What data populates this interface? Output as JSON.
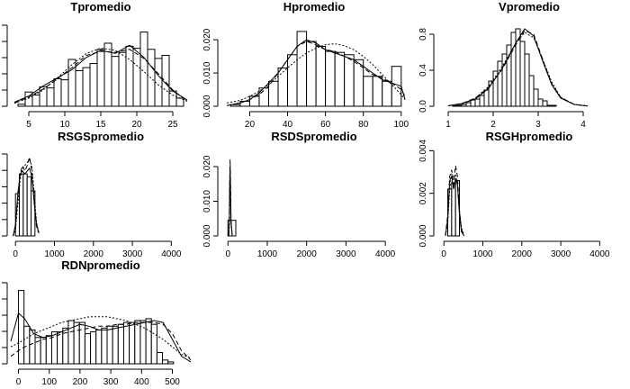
{
  "chart_data": [
    {
      "type": "histogram",
      "title": "Tpromedio",
      "x_ticks": [
        5,
        10,
        15,
        20,
        25
      ],
      "y_ticks": [],
      "xlim": [
        2.5,
        27.5
      ],
      "ylim": [
        0,
        0.085
      ],
      "bins": {
        "start": 3.5,
        "width": 1,
        "heights": [
          0.002,
          0.014,
          0.011,
          0.019,
          0.018,
          0.027,
          0.026,
          0.046,
          0.035,
          0.038,
          0.042,
          0.056,
          0.062,
          0.049,
          0.053,
          0.059,
          0.057,
          0.073,
          0.056,
          0.047,
          0.05,
          0.015,
          0.008
        ]
      },
      "series": [
        {
          "style": "solid",
          "x": [
            3,
            5,
            7,
            9,
            11,
            13,
            15,
            17,
            19,
            21,
            23,
            25,
            27
          ],
          "y": [
            0.004,
            0.01,
            0.02,
            0.028,
            0.036,
            0.048,
            0.055,
            0.052,
            0.06,
            0.048,
            0.03,
            0.015,
            0.006
          ]
        },
        {
          "style": "dashed",
          "x": [
            3,
            5,
            7,
            9,
            11,
            13,
            15,
            17,
            19,
            21,
            23,
            25,
            27
          ],
          "y": [
            0.003,
            0.009,
            0.017,
            0.027,
            0.038,
            0.05,
            0.054,
            0.053,
            0.056,
            0.047,
            0.032,
            0.016,
            0.005
          ]
        },
        {
          "style": "dotted",
          "x": [
            3,
            5,
            7,
            9,
            11,
            13,
            15,
            17,
            19,
            21,
            23,
            25,
            27
          ],
          "y": [
            0.003,
            0.008,
            0.016,
            0.028,
            0.041,
            0.052,
            0.057,
            0.055,
            0.046,
            0.034,
            0.021,
            0.011,
            0.005
          ]
        }
      ]
    },
    {
      "type": "histogram",
      "title": "Hpromedio",
      "x_ticks": [
        20,
        40,
        60,
        80,
        100
      ],
      "y_ticks": [
        0.0,
        0.01,
        0.02
      ],
      "y_tick_labels": [
        "0.000",
        "0.010",
        "0.020"
      ],
      "xlim": [
        6,
        102
      ],
      "ylim": [
        0,
        0.026
      ],
      "bins": {
        "start": 10,
        "width": 5,
        "heights": [
          0.0005,
          0.0015,
          0.003,
          0.0055,
          0.0075,
          0.0115,
          0.0155,
          0.0225,
          0.0195,
          0.018,
          0.0165,
          0.0162,
          0.0155,
          0.014,
          0.009,
          0.009,
          0.0075,
          0.012
        ]
      },
      "series": [
        {
          "style": "solid",
          "x": [
            8,
            15,
            20,
            25,
            30,
            35,
            40,
            45,
            50,
            55,
            60,
            65,
            70,
            75,
            80,
            85,
            90,
            95,
            100,
            102
          ],
          "y": [
            0.0002,
            0.001,
            0.002,
            0.004,
            0.007,
            0.01,
            0.014,
            0.018,
            0.02,
            0.019,
            0.017,
            0.016,
            0.015,
            0.014,
            0.012,
            0.01,
            0.008,
            0.007,
            0.006,
            0.002
          ]
        },
        {
          "style": "dashed",
          "x": [
            8,
            15,
            20,
            25,
            30,
            35,
            40,
            45,
            50,
            55,
            60,
            65,
            70,
            75,
            80,
            85,
            90,
            95,
            100,
            102
          ],
          "y": [
            0.0002,
            0.001,
            0.002,
            0.0035,
            0.006,
            0.01,
            0.014,
            0.018,
            0.0195,
            0.0185,
            0.017,
            0.0165,
            0.015,
            0.0135,
            0.0115,
            0.0095,
            0.0085,
            0.007,
            0.005,
            0.003
          ]
        },
        {
          "style": "dotted",
          "x": [
            8,
            15,
            20,
            25,
            30,
            35,
            40,
            45,
            50,
            55,
            60,
            65,
            70,
            75,
            80,
            85,
            90,
            95,
            100,
            102
          ],
          "y": [
            0.001,
            0.0018,
            0.003,
            0.0045,
            0.0065,
            0.009,
            0.0115,
            0.014,
            0.016,
            0.0175,
            0.0185,
            0.0188,
            0.0182,
            0.017,
            0.015,
            0.0125,
            0.0095,
            0.0065,
            0.0035,
            0.002
          ]
        }
      ]
    },
    {
      "type": "histogram",
      "title": "Vpromedio",
      "x_ticks": [
        1,
        2,
        3,
        4
      ],
      "y_ticks": [
        0.0,
        0.4,
        0.8
      ],
      "y_tick_labels": [
        "0.0",
        "0.4",
        "0.8"
      ],
      "xlim": [
        0.8,
        4.8
      ],
      "ylim": [
        0,
        0.96
      ],
      "bins": {
        "start": 1.1,
        "width": 0.1,
        "heights": [
          0.005,
          0.01,
          0.02,
          0.04,
          0.07,
          0.08,
          0.12,
          0.18,
          0.28,
          0.39,
          0.5,
          0.58,
          0.68,
          0.82,
          0.86,
          0.72,
          0.58,
          0.34,
          0.19,
          0.08,
          0.06,
          0.01,
          0.01
        ]
      },
      "series": [
        {
          "style": "solid",
          "x": [
            1.0,
            1.3,
            1.6,
            1.9,
            2.2,
            2.5,
            2.7,
            2.9,
            3.1,
            3.3,
            3.5,
            3.8,
            4.1
          ],
          "y": [
            0.005,
            0.03,
            0.08,
            0.2,
            0.42,
            0.7,
            0.86,
            0.78,
            0.5,
            0.24,
            0.09,
            0.02,
            0.003
          ]
        },
        {
          "style": "dashed",
          "x": [
            1.0,
            1.3,
            1.6,
            1.9,
            2.2,
            2.5,
            2.7,
            2.9,
            3.1,
            3.3,
            3.5,
            3.8,
            4.1
          ],
          "y": [
            0.005,
            0.03,
            0.09,
            0.21,
            0.41,
            0.68,
            0.84,
            0.8,
            0.52,
            0.25,
            0.1,
            0.02,
            0.003
          ]
        },
        {
          "style": "dotted",
          "x": [
            1.0,
            1.3,
            1.6,
            1.9,
            2.2,
            2.5,
            2.7,
            2.9,
            3.1,
            3.3,
            3.5,
            3.8,
            4.1
          ],
          "y": [
            0.004,
            0.025,
            0.09,
            0.22,
            0.44,
            0.7,
            0.82,
            0.76,
            0.52,
            0.27,
            0.1,
            0.02,
            0.003
          ]
        }
      ]
    },
    {
      "type": "histogram",
      "title": "RSGSpromedio",
      "x_ticks": [
        0,
        1000,
        2000,
        3000,
        4000
      ],
      "y_ticks": [],
      "xlim": [
        -120,
        4500
      ],
      "ylim": [
        0,
        0.0031
      ],
      "bins": {
        "start": 0,
        "width": 100,
        "heights": [
          0.0015,
          0.0022,
          0.0022,
          0.0021,
          0.0016
        ]
      },
      "series": [
        {
          "style": "solid",
          "x": [
            -60,
            0,
            60,
            120,
            180,
            240,
            300,
            360,
            420,
            480,
            540,
            600
          ],
          "y": [
            0,
            0.0004,
            0.0015,
            0.0022,
            0.0023,
            0.0022,
            0.0023,
            0.0024,
            0.0021,
            0.0012,
            0.0004,
            0.0001
          ]
        },
        {
          "style": "dashed",
          "x": [
            -60,
            0,
            60,
            120,
            180,
            240,
            300,
            360,
            420,
            480,
            540,
            600
          ],
          "y": [
            0,
            0.0003,
            0.0014,
            0.0022,
            0.0025,
            0.0023,
            0.0025,
            0.0028,
            0.0023,
            0.0012,
            0.0003,
            0.0001
          ]
        },
        {
          "style": "dotted",
          "x": [
            -60,
            0,
            60,
            120,
            180,
            240,
            300,
            360,
            420,
            480,
            540,
            600
          ],
          "y": [
            0,
            0.0002,
            0.0011,
            0.002,
            0.0024,
            0.0025,
            0.0026,
            0.0027,
            0.0025,
            0.0015,
            0.0005,
            0.0001
          ]
        }
      ]
    },
    {
      "type": "histogram",
      "title": "RSDSpromedio",
      "x_ticks": [
        0,
        1000,
        2000,
        3000,
        4000
      ],
      "y_ticks": [
        0.0,
        0.01,
        0.02
      ],
      "y_tick_labels": [
        "0.000",
        "0.010",
        "0.020"
      ],
      "xlim": [
        -120,
        4500
      ],
      "ylim": [
        0,
        0.0252
      ],
      "bins": {
        "start": 0,
        "width": 200,
        "heights": [
          0.0045
        ]
      },
      "series": [
        {
          "style": "solid",
          "x": [
            20,
            35,
            45,
            55,
            65,
            80,
            110
          ],
          "y": [
            0,
            0.004,
            0.014,
            0.02,
            0.014,
            0.004,
            0
          ]
        },
        {
          "style": "dashed",
          "x": [
            20,
            35,
            45,
            55,
            65,
            80,
            110
          ],
          "y": [
            0,
            0.006,
            0.016,
            0.022,
            0.016,
            0.005,
            0
          ]
        },
        {
          "style": "dotted",
          "x": [
            20,
            35,
            45,
            55,
            65,
            80,
            110
          ],
          "y": [
            0,
            0.003,
            0.01,
            0.015,
            0.01,
            0.003,
            0
          ]
        }
      ]
    },
    {
      "type": "histogram",
      "title": "RSGHpromedio",
      "x_ticks": [
        0,
        1000,
        2000,
        3000,
        4000
      ],
      "y_ticks": [
        0.0,
        0.002,
        0.004
      ],
      "y_tick_labels": [
        "0.000",
        "0.002",
        "0.004"
      ],
      "xlim": [
        -120,
        4500
      ],
      "ylim": [
        0,
        0.0041
      ],
      "bins": {
        "start": 100,
        "width": 100,
        "heights": [
          0.0022,
          0.0025,
          0.0026
        ]
      },
      "series": [
        {
          "style": "solid",
          "x": [
            40,
            100,
            150,
            200,
            250,
            300,
            350,
            400,
            450,
            520
          ],
          "y": [
            0,
            0.0008,
            0.0026,
            0.0028,
            0.0022,
            0.0027,
            0.0024,
            0.001,
            0.0002,
            0
          ]
        },
        {
          "style": "dashed",
          "x": [
            40,
            100,
            150,
            200,
            250,
            300,
            350,
            400,
            450,
            520
          ],
          "y": [
            0,
            0.001,
            0.0028,
            0.0031,
            0.0024,
            0.0033,
            0.0028,
            0.0012,
            0.0003,
            0
          ]
        },
        {
          "style": "dotted",
          "x": [
            40,
            100,
            150,
            200,
            250,
            300,
            350,
            400,
            450,
            520
          ],
          "y": [
            0,
            0.0006,
            0.0022,
            0.0029,
            0.0028,
            0.0029,
            0.0024,
            0.0012,
            0.0004,
            0
          ]
        }
      ]
    },
    {
      "type": "histogram",
      "title": "RDNpromedio",
      "x_ticks": [
        0,
        100,
        200,
        300,
        400,
        500
      ],
      "y_ticks": [],
      "xlim": [
        -25,
        560
      ],
      "ylim": [
        0,
        0.0046
      ],
      "bins": {
        "start": 0,
        "width": 18,
        "heights": [
          0.0039,
          0.002,
          0.0018,
          0.0014,
          0.0014,
          0.0015,
          0.0017,
          0.0017,
          0.0019,
          0.0023,
          0.0022,
          0.0022,
          0.0016,
          0.0017,
          0.0018,
          0.0019,
          0.002,
          0.002,
          0.0021,
          0.0022,
          0.0022,
          0.0023,
          0.0023,
          0.0024,
          0.0021,
          0.0006,
          0.0002,
          0.0001
        ]
      },
      "series": [
        {
          "style": "solid",
          "x": [
            -25,
            0,
            20,
            50,
            80,
            110,
            140,
            170,
            200,
            230,
            260,
            290,
            320,
            350,
            380,
            410,
            440,
            470,
            500,
            530,
            560
          ],
          "y": [
            0.0012,
            0.0027,
            0.0024,
            0.0016,
            0.0014,
            0.0015,
            0.0017,
            0.0019,
            0.0021,
            0.002,
            0.0018,
            0.0018,
            0.0019,
            0.002,
            0.0021,
            0.0022,
            0.0023,
            0.0022,
            0.0013,
            0.0004,
            0.0001
          ]
        },
        {
          "style": "dashed",
          "x": [
            -25,
            0,
            20,
            50,
            80,
            110,
            140,
            170,
            200,
            230,
            260,
            290,
            320,
            350,
            380,
            410,
            440,
            470,
            500,
            530,
            560
          ],
          "y": [
            0.0004,
            0.0007,
            0.0009,
            0.0011,
            0.0013,
            0.0014,
            0.0016,
            0.0017,
            0.0018,
            0.0019,
            0.002,
            0.002,
            0.0021,
            0.0021,
            0.0022,
            0.0022,
            0.0022,
            0.0021,
            0.0016,
            0.0007,
            0.0002
          ]
        },
        {
          "style": "dotted",
          "x": [
            -25,
            0,
            20,
            50,
            80,
            110,
            140,
            170,
            200,
            230,
            260,
            290,
            320,
            350,
            380,
            410,
            440,
            470,
            500,
            530,
            560
          ],
          "y": [
            0.0009,
            0.0011,
            0.0013,
            0.0016,
            0.0018,
            0.002,
            0.0022,
            0.0023,
            0.0024,
            0.0025,
            0.0025,
            0.0025,
            0.0024,
            0.0023,
            0.0021,
            0.0019,
            0.0016,
            0.0013,
            0.0009,
            0.0005,
            0.0003
          ]
        }
      ]
    }
  ]
}
